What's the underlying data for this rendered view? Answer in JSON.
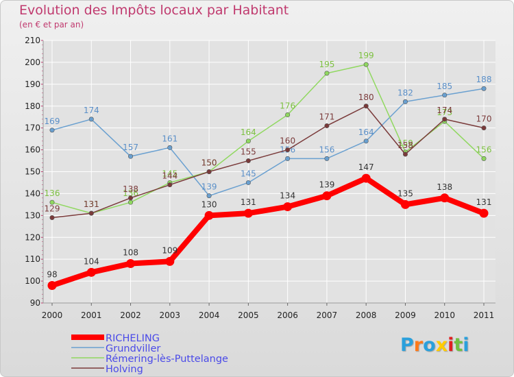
{
  "chart_data": {
    "type": "line",
    "title": "Evolution des Impôts locaux par Habitant",
    "subtitle": "(en € et par an)",
    "categories": [
      "2000",
      "2001",
      "2002",
      "2003",
      "2004",
      "2005",
      "2006",
      "2007",
      "2008",
      "2009",
      "2010",
      "2011"
    ],
    "y_ticks": [
      90,
      100,
      110,
      120,
      130,
      140,
      150,
      160,
      170,
      180,
      190,
      200,
      210
    ],
    "ylim": [
      90,
      210
    ],
    "series": [
      {
        "name": "RICHELING",
        "color": "#ff0000",
        "label_color": "#333333",
        "values": [
          98,
          104,
          108,
          109,
          130,
          131,
          134,
          139,
          147,
          135,
          138,
          131
        ]
      },
      {
        "name": "Grundviller",
        "color": "#6aa0d0",
        "label_color": "#5a8fc8",
        "values": [
          169,
          174,
          157,
          161,
          139,
          145,
          156,
          156,
          164,
          182,
          185,
          188
        ]
      },
      {
        "name": "Rémering-lès-Puttelange",
        "color": "#90d860",
        "label_color": "#7cc040",
        "values": [
          136,
          131,
          136,
          145,
          150,
          164,
          176,
          195,
          199,
          159,
          173,
          156
        ]
      },
      {
        "name": "Holving",
        "color": "#7a3a3a",
        "label_color": "#7a3a3a",
        "values": [
          129,
          131,
          138,
          144,
          150,
          155,
          160,
          171,
          180,
          158,
          174,
          170
        ]
      }
    ]
  },
  "logo": {
    "letters": [
      "P",
      "r",
      "o",
      "x",
      "i",
      "t",
      "i"
    ],
    "colors": [
      "#2aa0dc",
      "#ff7a1a",
      "#2aa0dc",
      "#ffcc00",
      "#e02020",
      "#70c040",
      "#2aa0dc"
    ]
  }
}
